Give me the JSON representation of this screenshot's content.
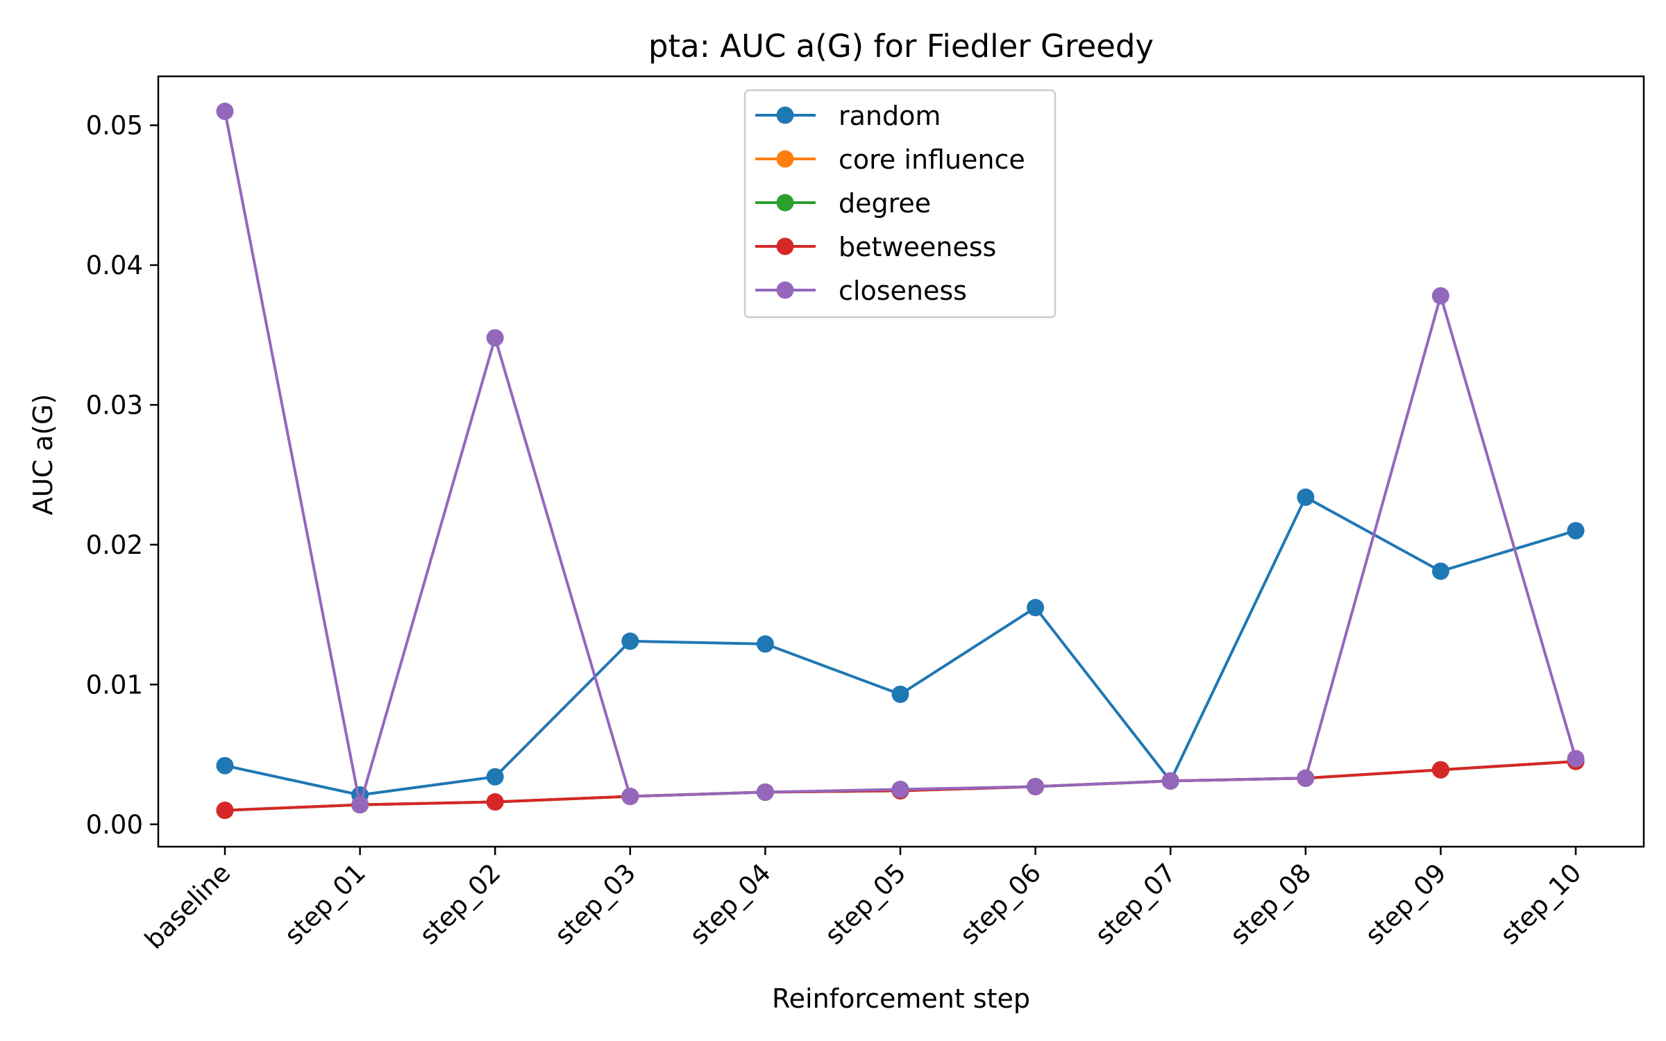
{
  "chart_data": {
    "type": "line",
    "title": "pta: AUC a(G) for Fiedler Greedy",
    "xlabel": "Reinforcement step",
    "ylabel": "AUC a(G)",
    "categories": [
      "baseline",
      "step_01",
      "step_02",
      "step_03",
      "step_04",
      "step_05",
      "step_06",
      "step_07",
      "step_08",
      "step_09",
      "step_10"
    ],
    "ylim": [
      -0.0016,
      0.0535
    ],
    "yticks": [
      "0.00",
      "0.01",
      "0.02",
      "0.03",
      "0.04",
      "0.05"
    ],
    "grid": false,
    "legend_position": "top-center",
    "series": [
      {
        "name": "random",
        "color": "#1f77b4",
        "values": [
          0.0042,
          0.0021,
          0.0034,
          0.0131,
          0.0129,
          0.0093,
          0.0155,
          0.0031,
          0.0234,
          0.0181,
          0.021
        ]
      },
      {
        "name": "core influence",
        "color": "#ff7f0e",
        "values": [
          0.001,
          0.0014,
          0.0016,
          0.002,
          0.0023,
          0.0024,
          0.0027,
          0.0031,
          0.0033,
          0.0039,
          0.0045
        ]
      },
      {
        "name": "degree",
        "color": "#2ca02c",
        "values": [
          0.001,
          0.0014,
          0.0016,
          0.002,
          0.0023,
          0.0024,
          0.0027,
          0.0031,
          0.0033,
          0.0039,
          0.0045
        ]
      },
      {
        "name": "betweeness",
        "color": "#d62728",
        "values": [
          0.001,
          0.0014,
          0.0016,
          0.002,
          0.0023,
          0.0024,
          0.0027,
          0.0031,
          0.0033,
          0.0039,
          0.0045
        ]
      },
      {
        "name": "closeness",
        "color": "#9467bd",
        "values": [
          0.051,
          0.0014,
          0.0348,
          0.002,
          0.0023,
          0.0025,
          0.0027,
          0.0031,
          0.0033,
          0.0378,
          0.0047
        ]
      }
    ]
  }
}
